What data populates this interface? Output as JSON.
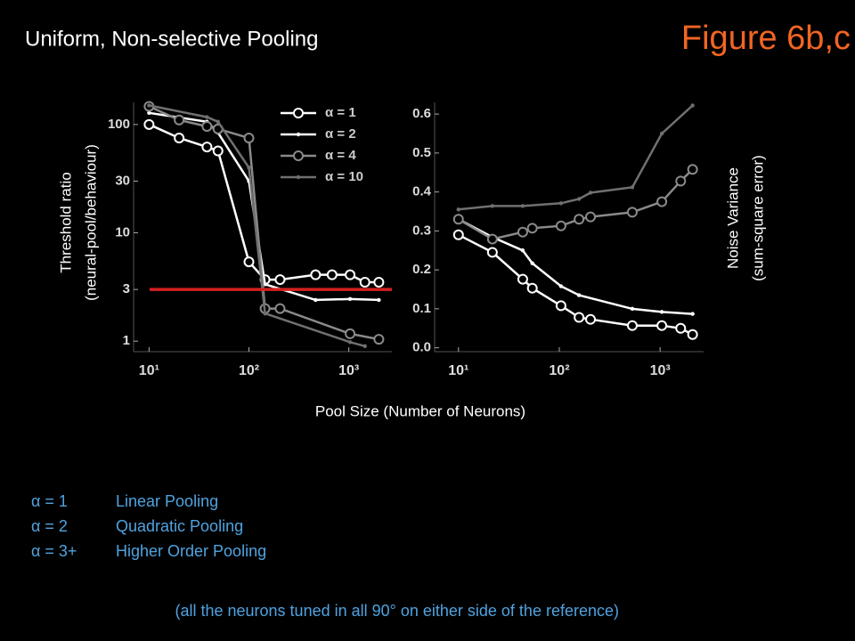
{
  "title": "Uniform, Non-selective Pooling",
  "figure_label": "Figure 6b,c",
  "x_label": "Pool Size (Number of Neurons)",
  "chart_data": [
    {
      "type": "line",
      "xscale": "log",
      "yscale": "log",
      "y_label": [
        "Threshold ratio",
        "(neural-pool/behaviour)"
      ],
      "xlim": [
        7,
        2700
      ],
      "ylim": [
        0.8,
        160
      ],
      "xticks": [
        {
          "value": 10,
          "label": "10¹"
        },
        {
          "value": 100,
          "label": "10²"
        },
        {
          "value": 1000,
          "label": "10³"
        }
      ],
      "yticks": [
        1,
        3,
        10,
        30,
        100
      ],
      "legend": "upper right",
      "reference_line": {
        "value": 3,
        "color": "#d42020"
      },
      "series": [
        {
          "name": "α = 1",
          "color": "#ffffff",
          "marker": "circle",
          "x": [
            10,
            20,
            38,
            49,
            100,
            145,
            205,
            465,
            680,
            1030,
            1450,
            2000
          ],
          "values": [
            100,
            75,
            62,
            57,
            5.4,
            3.7,
            3.7,
            4.1,
            4.1,
            4.1,
            3.5,
            3.5
          ]
        },
        {
          "name": "α = 2",
          "color": "#ffffff",
          "marker": "dot",
          "x": [
            10,
            38,
            49,
            100,
            145,
            465,
            1030,
            2000
          ],
          "values": [
            128,
            106,
            84,
            30,
            3.35,
            2.4,
            2.45,
            2.4
          ]
        },
        {
          "name": "α = 4",
          "color": "#8a8a8a",
          "marker": "circle",
          "x": [
            10,
            20,
            38,
            49,
            100,
            145,
            205,
            1030,
            2000
          ],
          "values": [
            147,
            110,
            96,
            91,
            75,
            2.0,
            2.0,
            1.17,
            1.04
          ]
        },
        {
          "name": "α = 10",
          "color": "#707070",
          "marker": "dot",
          "x": [
            10,
            38,
            49,
            100,
            145,
            1030,
            1450
          ],
          "values": [
            150,
            117,
            106,
            40,
            1.8,
            0.98,
            0.9
          ]
        }
      ]
    },
    {
      "type": "line",
      "xscale": "log",
      "y_label": [
        "Noise Variance",
        "(sum-square error)"
      ],
      "xlim": [
        5.8,
        2700
      ],
      "ylim": [
        -0.01,
        0.63
      ],
      "xticks": [
        {
          "value": 10,
          "label": "10¹"
        },
        {
          "value": 100,
          "label": "10²"
        },
        {
          "value": 1000,
          "label": "10³"
        }
      ],
      "yticks": [
        {
          "value": 0,
          "label": "0.0"
        },
        0.1,
        0.2,
        0.3,
        0.4,
        0.5,
        0.6
      ],
      "series": [
        {
          "color": "#ffffff",
          "marker": "circle",
          "x": [
            10,
            21.7,
            43.4,
            54,
            104,
            157,
            204,
            530,
            1040,
            1600,
            2100
          ],
          "values": [
            0.29,
            0.245,
            0.176,
            0.153,
            0.108,
            0.078,
            0.073,
            0.057,
            0.057,
            0.05,
            0.034
          ]
        },
        {
          "color": "#ffffff",
          "marker": "dot",
          "x": [
            10,
            21.7,
            43.4,
            54,
            104,
            157,
            530,
            1040,
            2100
          ],
          "values": [
            0.33,
            0.284,
            0.25,
            0.217,
            0.158,
            0.135,
            0.1,
            0.092,
            0.087
          ]
        },
        {
          "color": "#8a8a8a",
          "marker": "circle",
          "x": [
            10,
            21.7,
            43.4,
            54,
            104,
            157,
            204,
            530,
            1040,
            1600,
            2100
          ],
          "values": [
            0.33,
            0.279,
            0.297,
            0.307,
            0.313,
            0.33,
            0.336,
            0.348,
            0.375,
            0.428,
            0.458
          ]
        },
        {
          "color": "#707070",
          "marker": "dot",
          "x": [
            10,
            21.7,
            43.4,
            104,
            157,
            204,
            530,
            1040,
            2100
          ],
          "values": [
            0.355,
            0.364,
            0.364,
            0.371,
            0.382,
            0.398,
            0.412,
            0.55,
            0.622
          ]
        }
      ]
    }
  ],
  "definitions": [
    [
      "α = 1",
      "Linear Pooling"
    ],
    [
      "α = 2",
      "Quadratic Pooling"
    ],
    [
      "α = 3+",
      "Higher Order Pooling"
    ]
  ],
  "footnote": "(all the neurons tuned in all 90° on either side of the reference)"
}
